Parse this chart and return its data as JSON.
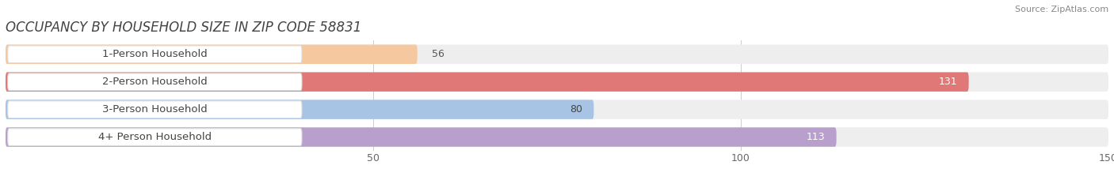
{
  "title": "OCCUPANCY BY HOUSEHOLD SIZE IN ZIP CODE 58831",
  "source": "Source: ZipAtlas.com",
  "categories": [
    "1-Person Household",
    "2-Person Household",
    "3-Person Household",
    "4+ Person Household"
  ],
  "values": [
    56,
    131,
    80,
    113
  ],
  "bar_colors": [
    "#f5c8a0",
    "#e07878",
    "#a8c4e5",
    "#b89fcc"
  ],
  "label_colors": [
    "#444444",
    "#ffffff",
    "#444444",
    "#ffffff"
  ],
  "bar_bg_color": "#eeeeee",
  "xlim": [
    0,
    150
  ],
  "xticks": [
    50,
    100,
    150
  ],
  "background_color": "#ffffff",
  "title_fontsize": 12,
  "label_fontsize": 9.5,
  "value_fontsize": 9,
  "bar_height": 0.7,
  "figsize": [
    14.06,
    2.33
  ],
  "dpi": 100
}
